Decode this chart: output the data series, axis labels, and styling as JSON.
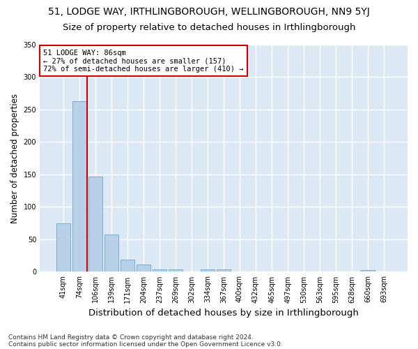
{
  "title_line1": "51, LODGE WAY, IRTHLINGBOROUGH, WELLINGBOROUGH, NN9 5YJ",
  "title_line2": "Size of property relative to detached houses in Irthlingborough",
  "xlabel": "Distribution of detached houses by size in Irthlingborough",
  "ylabel": "Number of detached properties",
  "categories": [
    "41sqm",
    "74sqm",
    "106sqm",
    "139sqm",
    "171sqm",
    "204sqm",
    "237sqm",
    "269sqm",
    "302sqm",
    "334sqm",
    "367sqm",
    "400sqm",
    "432sqm",
    "465sqm",
    "497sqm",
    "530sqm",
    "563sqm",
    "595sqm",
    "628sqm",
    "660sqm",
    "693sqm"
  ],
  "values": [
    75,
    263,
    147,
    57,
    19,
    11,
    4,
    4,
    0,
    4,
    4,
    0,
    0,
    0,
    0,
    0,
    0,
    0,
    0,
    3,
    0
  ],
  "bar_color": "#b8d0e8",
  "bar_edge_color": "#7aaace",
  "vline_color": "#cc0000",
  "vline_x_index": 1.5,
  "annotation_line1": "51 LODGE WAY: 86sqm",
  "annotation_line2": "← 27% of detached houses are smaller (157)",
  "annotation_line3": "72% of semi-detached houses are larger (410) →",
  "annotation_box_facecolor": "#ffffff",
  "annotation_box_edgecolor": "#cc0000",
  "ylim": [
    0,
    350
  ],
  "yticks": [
    0,
    50,
    100,
    150,
    200,
    250,
    300,
    350
  ],
  "footnote1": "Contains HM Land Registry data © Crown copyright and database right 2024.",
  "footnote2": "Contains public sector information licensed under the Open Government Licence v3.0.",
  "fig_bg_color": "#ffffff",
  "plot_bg_color": "#dce9f5",
  "grid_color": "#ffffff",
  "title1_fontsize": 10,
  "title2_fontsize": 9.5,
  "xlabel_fontsize": 9.5,
  "ylabel_fontsize": 8.5,
  "tick_fontsize": 7,
  "annot_fontsize": 7.5,
  "footnote_fontsize": 6.5
}
